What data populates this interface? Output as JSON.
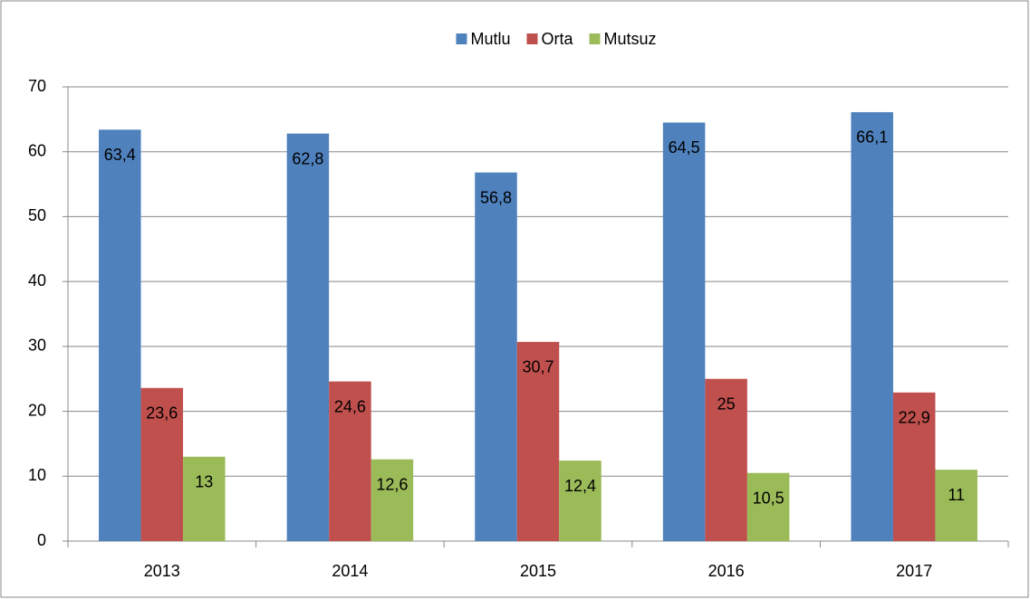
{
  "chart_data": {
    "type": "bar",
    "categories": [
      "2013",
      "2014",
      "2015",
      "2016",
      "2017"
    ],
    "series": [
      {
        "name": "Mutlu",
        "color": "#4f81bd",
        "values": [
          63.4,
          62.8,
          56.8,
          64.5,
          66.1
        ],
        "value_labels": [
          "63,4",
          "62,8",
          "56,8",
          "64,5",
          "66,1"
        ]
      },
      {
        "name": "Orta",
        "color": "#c0504d",
        "values": [
          23.6,
          24.6,
          30.7,
          25,
          22.9
        ],
        "value_labels": [
          "23,6",
          "24,6",
          "30,7",
          "25",
          "22,9"
        ]
      },
      {
        "name": "Mutsuz",
        "color": "#9bbb59",
        "values": [
          13,
          12.6,
          12.4,
          10.5,
          11
        ],
        "value_labels": [
          "13",
          "12,6",
          "12,4",
          "10,5",
          "11"
        ]
      }
    ],
    "ylim": [
      0,
      70
    ],
    "yticks": [
      0,
      10,
      20,
      30,
      40,
      50,
      60,
      70
    ],
    "grid": true,
    "legend": "top"
  }
}
